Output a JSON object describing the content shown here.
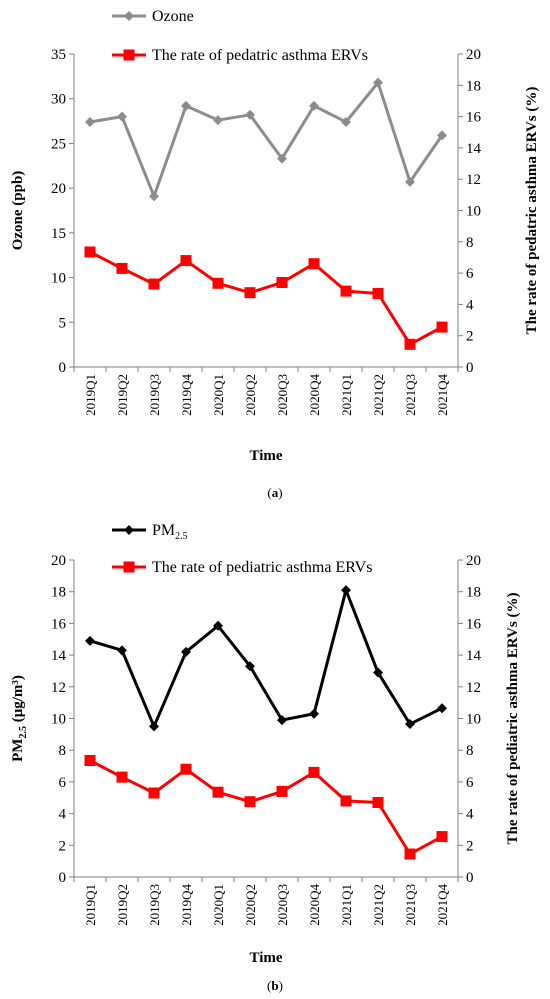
{
  "chart_data": [
    {
      "type": "line",
      "panel_label_prefix": "(",
      "panel_letter": "a",
      "panel_label_suffix": ")",
      "categories": [
        "2019Q1",
        "2019Q2",
        "2019Q3",
        "2019Q4",
        "2020Q1",
        "2020Q2",
        "2020Q3",
        "2020Q4",
        "2021Q1",
        "2021Q2",
        "2021Q3",
        "2021Q4"
      ],
      "xlabel": "Time",
      "ylabel_left": "Ozone (ppb)",
      "ylabel_left_main": "",
      "ylabel_left_sub": "",
      "ylabel_left_tail": "",
      "ylabel_right": "The rate of pedatric asthma ERVs (%)",
      "ylim_left": [
        0,
        35
      ],
      "yticks_left": [
        0,
        5,
        10,
        15,
        20,
        25,
        30,
        35
      ],
      "ylim_right": [
        0,
        20
      ],
      "yticks_right": [
        0,
        2,
        4,
        6,
        8,
        10,
        12,
        14,
        16,
        18,
        20
      ],
      "legend_placement": "top-center",
      "series": [
        {
          "name": "Ozone",
          "name_sub": "",
          "axis": "left",
          "marker": "diamond",
          "color": "#8c8c8c",
          "values": [
            27.4,
            28.0,
            19.1,
            29.2,
            27.6,
            28.2,
            23.3,
            29.2,
            27.4,
            31.8,
            20.7,
            25.9
          ]
        },
        {
          "name": "The rate of pedatric asthma ERVs",
          "name_sub": "",
          "axis": "right",
          "marker": "square",
          "color": "#ff0000",
          "values": [
            7.35,
            6.3,
            5.3,
            6.8,
            5.35,
            4.75,
            5.4,
            6.6,
            4.85,
            4.7,
            1.45,
            2.55
          ]
        }
      ]
    },
    {
      "type": "line",
      "panel_label_prefix": "(",
      "panel_letter": "b",
      "panel_label_suffix": ")",
      "categories": [
        "2019Q1",
        "2019Q2",
        "2019Q3",
        "2019Q4",
        "2020Q1",
        "2020Q2",
        "2020Q3",
        "2020Q4",
        "2021Q1",
        "2021Q2",
        "2021Q3",
        "2021Q4"
      ],
      "xlabel": "Time",
      "ylabel_left": "",
      "ylabel_left_main": "PM",
      "ylabel_left_sub": "2.5",
      "ylabel_left_tail": " (μg/m³)",
      "ylabel_right": "The rate of pediatric asthma ERVs (%)",
      "ylim_left": [
        0,
        20
      ],
      "yticks_left": [
        0,
        2,
        4,
        6,
        8,
        10,
        12,
        14,
        16,
        18,
        20
      ],
      "ylim_right": [
        0,
        20
      ],
      "yticks_right": [
        0,
        2,
        4,
        6,
        8,
        10,
        12,
        14,
        16,
        18,
        20
      ],
      "legend_placement": "top-center",
      "series": [
        {
          "name": "PM",
          "name_sub": "2.5",
          "axis": "left",
          "marker": "diamond",
          "color": "#000000",
          "values": [
            14.9,
            14.3,
            9.5,
            14.2,
            15.85,
            13.3,
            9.9,
            10.3,
            18.1,
            12.9,
            9.65,
            10.65
          ]
        },
        {
          "name": "The rate of pediatric asthma ERVs",
          "name_sub": "",
          "axis": "right",
          "marker": "square",
          "color": "#ff0000",
          "values": [
            7.35,
            6.3,
            5.3,
            6.8,
            5.35,
            4.75,
            5.4,
            6.6,
            4.8,
            4.7,
            1.45,
            2.55
          ]
        }
      ]
    }
  ]
}
